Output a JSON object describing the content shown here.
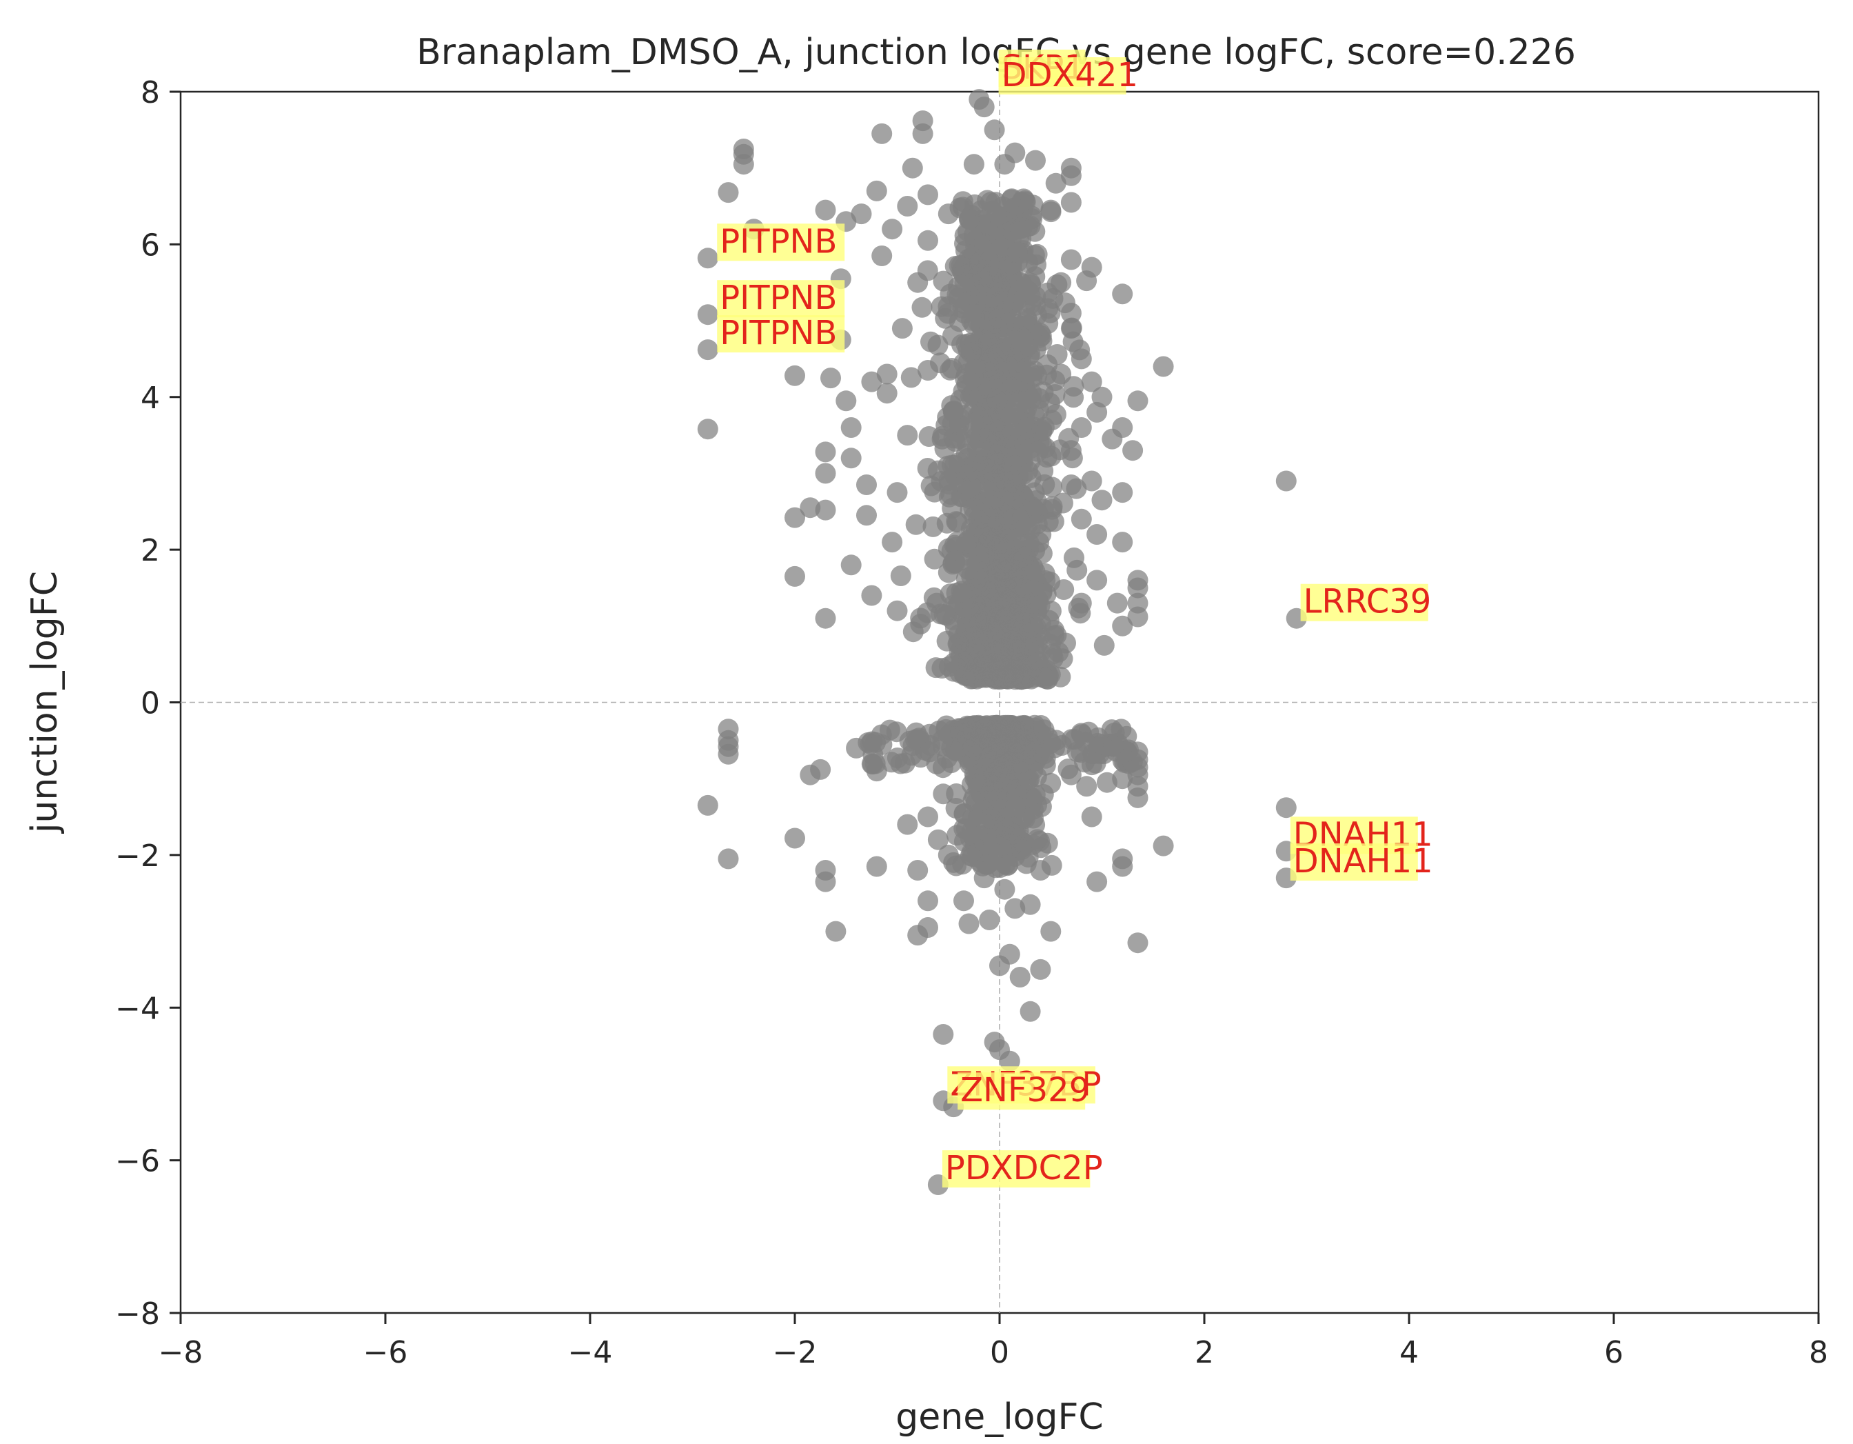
{
  "chart_data": {
    "type": "scatter",
    "title": "Branaplam_DMSO_A, junction logFC vs gene logFC, score=0.226",
    "xlabel": "gene_logFC",
    "ylabel": "junction_logFC",
    "xlim": [
      -8,
      8
    ],
    "ylim": [
      -8,
      8
    ],
    "xticks": [
      -8,
      -6,
      -4,
      -2,
      0,
      2,
      4,
      6,
      8
    ],
    "yticks": [
      -8,
      -6,
      -4,
      -2,
      0,
      2,
      4,
      6,
      8
    ],
    "grid": false,
    "reference_lines": {
      "x": 0,
      "y": 0,
      "style": "dashed"
    },
    "point_color": "#808080",
    "annotation_text_color": "#e3241b",
    "annotation_box_color": "#ffff7a",
    "annotations": [
      {
        "label": "SKP1",
        "x": -0.05,
        "y": 8.1
      },
      {
        "label": "DDX421",
        "x": -0.05,
        "y": 8.0
      },
      {
        "label": "PITPNB",
        "x": -2.8,
        "y": 5.82
      },
      {
        "label": "PITPNB",
        "x": -2.8,
        "y": 5.08
      },
      {
        "label": "PITPNB",
        "x": -2.8,
        "y": 4.62
      },
      {
        "label": "LRRC39",
        "x": 2.9,
        "y": 1.1
      },
      {
        "label": "DNAH11",
        "x": 2.8,
        "y": -1.95
      },
      {
        "label": "DNAH11",
        "x": 2.8,
        "y": -2.3
      },
      {
        "label": "ZNF37BP",
        "x": -0.55,
        "y": -5.22
      },
      {
        "label": "ZNF329",
        "x": -0.45,
        "y": -5.3
      },
      {
        "label": "PDXDC2P",
        "x": -0.6,
        "y": -6.32
      }
    ],
    "points": [
      [
        -2.85,
        5.82
      ],
      [
        -2.85,
        5.08
      ],
      [
        -2.85,
        4.62
      ],
      [
        -2.85,
        3.58
      ],
      [
        -2.85,
        -1.35
      ],
      [
        -2.5,
        7.25
      ],
      [
        -2.5,
        7.18
      ],
      [
        -2.5,
        7.05
      ],
      [
        -2.65,
        6.68
      ],
      [
        -2.4,
        6.2
      ],
      [
        -2.65,
        -0.35
      ],
      [
        -2.65,
        -0.5
      ],
      [
        -2.65,
        -0.58
      ],
      [
        -2.65,
        -0.68
      ],
      [
        -2.65,
        -2.05
      ],
      [
        -2.0,
        4.28
      ],
      [
        -2.0,
        2.42
      ],
      [
        -1.85,
        2.55
      ],
      [
        -2.0,
        1.65
      ],
      [
        -2.0,
        -1.78
      ],
      [
        -1.85,
        -0.95
      ],
      [
        -1.75,
        -0.88
      ],
      [
        -1.7,
        2.52
      ],
      [
        -1.7,
        3.0
      ],
      [
        -1.7,
        3.28
      ],
      [
        -1.7,
        6.45
      ],
      [
        -1.7,
        1.1
      ],
      [
        -1.7,
        -2.2
      ],
      [
        -1.7,
        -2.35
      ],
      [
        -1.6,
        -3.0
      ],
      [
        -1.65,
        4.25
      ],
      [
        -1.55,
        5.55
      ],
      [
        -1.55,
        4.75
      ],
      [
        -1.5,
        6.3
      ],
      [
        -1.5,
        3.95
      ],
      [
        -1.45,
        1.8
      ],
      [
        -1.45,
        3.6
      ],
      [
        -1.45,
        3.2
      ],
      [
        -1.4,
        -0.6
      ],
      [
        -1.35,
        6.4
      ],
      [
        -1.3,
        2.45
      ],
      [
        -1.3,
        2.85
      ],
      [
        -1.25,
        1.4
      ],
      [
        -1.25,
        4.2
      ],
      [
        -1.2,
        6.7
      ],
      [
        -1.2,
        -0.9
      ],
      [
        -1.2,
        -2.15
      ],
      [
        -1.15,
        7.45
      ],
      [
        -1.15,
        5.85
      ],
      [
        -1.1,
        4.3
      ],
      [
        -1.1,
        4.05
      ],
      [
        -1.05,
        6.2
      ],
      [
        -1.05,
        2.1
      ],
      [
        -1.0,
        1.2
      ],
      [
        -1.0,
        2.75
      ],
      [
        -0.95,
        4.9
      ],
      [
        -0.9,
        6.5
      ],
      [
        -0.9,
        3.5
      ],
      [
        -0.9,
        -1.6
      ],
      [
        -0.85,
        7.0
      ],
      [
        -0.8,
        5.5
      ],
      [
        -0.8,
        -2.2
      ],
      [
        -0.8,
        -3.05
      ],
      [
        -0.75,
        7.62
      ],
      [
        -0.75,
        7.45
      ],
      [
        -0.7,
        6.05
      ],
      [
        -0.7,
        6.65
      ],
      [
        -0.7,
        4.35
      ],
      [
        -0.7,
        -1.5
      ],
      [
        -0.7,
        -2.6
      ],
      [
        -0.7,
        -2.95
      ],
      [
        -0.65,
        2.3
      ],
      [
        -0.6,
        -1.8
      ],
      [
        -0.55,
        -4.35
      ],
      [
        -0.55,
        -1.2
      ],
      [
        -0.5,
        6.4
      ],
      [
        -0.5,
        1.7
      ],
      [
        -0.5,
        -2.0
      ],
      [
        -0.45,
        -2.1
      ],
      [
        -0.4,
        5.3
      ],
      [
        -0.35,
        -2.6
      ],
      [
        -0.3,
        -2.9
      ],
      [
        -0.25,
        7.05
      ],
      [
        -0.2,
        7.9
      ],
      [
        -0.2,
        6.25
      ],
      [
        -0.15,
        7.8
      ],
      [
        -0.15,
        -2.3
      ],
      [
        -0.1,
        -2.85
      ],
      [
        -0.05,
        7.5
      ],
      [
        -0.05,
        -4.45
      ],
      [
        0.0,
        -3.45
      ],
      [
        0.0,
        -4.55
      ],
      [
        0.05,
        7.05
      ],
      [
        0.05,
        -2.45
      ],
      [
        0.1,
        -3.3
      ],
      [
        0.1,
        -4.7
      ],
      [
        0.15,
        -2.7
      ],
      [
        0.15,
        7.2
      ],
      [
        0.2,
        -3.6
      ],
      [
        0.2,
        6.2
      ],
      [
        0.3,
        -4.05
      ],
      [
        0.3,
        -2.65
      ],
      [
        0.35,
        7.1
      ],
      [
        0.4,
        -3.5
      ],
      [
        0.4,
        -2.2
      ],
      [
        0.5,
        6.45
      ],
      [
        0.5,
        -3.0
      ],
      [
        0.55,
        6.8
      ],
      [
        0.6,
        5.5
      ],
      [
        0.6,
        4.3
      ],
      [
        0.7,
        7.0
      ],
      [
        0.7,
        6.9
      ],
      [
        0.7,
        6.55
      ],
      [
        0.7,
        5.8
      ],
      [
        0.7,
        5.1
      ],
      [
        0.7,
        4.9
      ],
      [
        0.7,
        3.3
      ],
      [
        0.7,
        2.85
      ],
      [
        0.7,
        -0.95
      ],
      [
        0.75,
        2.8
      ],
      [
        0.8,
        4.5
      ],
      [
        0.8,
        3.6
      ],
      [
        0.8,
        2.4
      ],
      [
        0.8,
        1.3
      ],
      [
        0.85,
        -1.1
      ],
      [
        0.9,
        4.2
      ],
      [
        0.9,
        5.7
      ],
      [
        0.9,
        2.9
      ],
      [
        0.9,
        -1.5
      ],
      [
        0.95,
        3.8
      ],
      [
        0.95,
        2.2
      ],
      [
        0.95,
        1.6
      ],
      [
        0.95,
        -2.35
      ],
      [
        1.0,
        4.0
      ],
      [
        1.0,
        2.65
      ],
      [
        1.0,
        -0.55
      ],
      [
        1.05,
        -1.05
      ],
      [
        1.1,
        3.45
      ],
      [
        1.15,
        1.3
      ],
      [
        1.2,
        5.35
      ],
      [
        1.2,
        3.6
      ],
      [
        1.2,
        2.75
      ],
      [
        1.2,
        2.1
      ],
      [
        1.2,
        1.0
      ],
      [
        1.2,
        -1.0
      ],
      [
        1.2,
        -2.15
      ],
      [
        1.2,
        -2.05
      ],
      [
        1.3,
        3.3
      ],
      [
        1.35,
        3.95
      ],
      [
        1.35,
        1.6
      ],
      [
        1.35,
        1.5
      ],
      [
        1.35,
        1.3
      ],
      [
        1.35,
        1.12
      ],
      [
        1.35,
        -0.65
      ],
      [
        1.35,
        -0.75
      ],
      [
        1.35,
        -0.85
      ],
      [
        1.35,
        -0.95
      ],
      [
        1.35,
        -1.1
      ],
      [
        1.35,
        -1.25
      ],
      [
        1.35,
        -3.15
      ],
      [
        1.6,
        4.4
      ],
      [
        1.6,
        -1.88
      ],
      [
        2.8,
        2.9
      ],
      [
        2.9,
        1.1
      ],
      [
        2.8,
        -1.38
      ],
      [
        2.8,
        -1.95
      ],
      [
        2.8,
        -2.3
      ],
      [
        -0.45,
        -5.3
      ],
      [
        -0.55,
        -5.22
      ],
      [
        -0.6,
        -6.32
      ]
    ]
  }
}
